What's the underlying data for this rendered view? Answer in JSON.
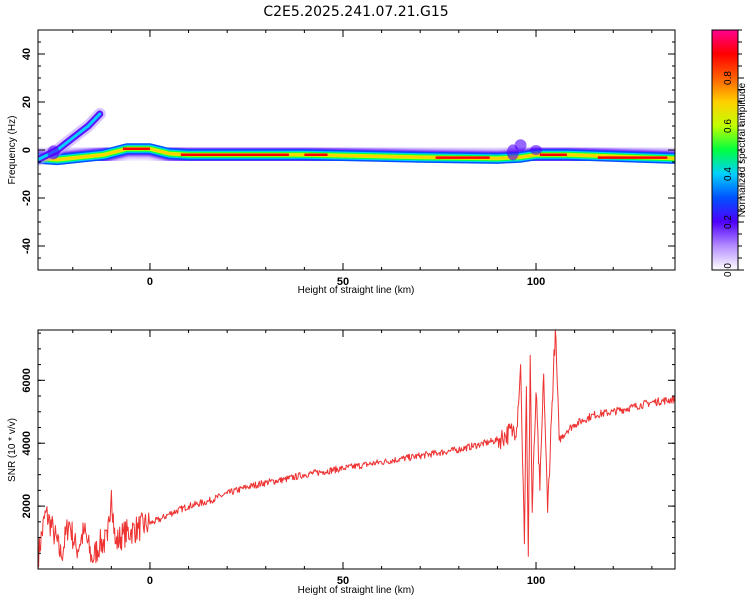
{
  "title": "C2E5.2025.241.07.21.G15",
  "chart_data": [
    {
      "type": "heatmap",
      "xlabel": "Height of straight line (km)",
      "ylabel": "Frequency (Hz)",
      "xlim": [
        -29,
        136
      ],
      "ylim": [
        -50,
        50
      ],
      "xticks": [
        "0",
        "50",
        "100"
      ],
      "yticks": [
        "40",
        "20",
        "0",
        "-20",
        "-40"
      ],
      "xtick_values": [
        0,
        50,
        100
      ],
      "ytick_values": [
        40,
        20,
        0,
        -20,
        -40
      ],
      "ridge": [
        {
          "x": -29,
          "f": -3.5
        },
        {
          "x": -24,
          "f": -4.0
        },
        {
          "x": -18,
          "f": -3.0
        },
        {
          "x": -12,
          "f": -2.0
        },
        {
          "x": -6,
          "f": 0.5
        },
        {
          "x": 0,
          "f": 0.5
        },
        {
          "x": 5,
          "f": -1.5
        },
        {
          "x": 10,
          "f": -2.0
        },
        {
          "x": 40,
          "f": -2.0
        },
        {
          "x": 70,
          "f": -3.0
        },
        {
          "x": 90,
          "f": -3.5
        },
        {
          "x": 96,
          "f": -3.0
        },
        {
          "x": 100,
          "f": -2.0
        },
        {
          "x": 108,
          "f": -2.0
        },
        {
          "x": 136,
          "f": -3.5
        }
      ],
      "branch": [
        {
          "x": -29,
          "f": -4
        },
        {
          "x": -24,
          "f": 0
        },
        {
          "x": -20,
          "f": 5
        },
        {
          "x": -16,
          "f": 10
        },
        {
          "x": -13,
          "f": 15
        }
      ],
      "colorbar": {
        "label": "Normalized spectral amplitude",
        "range": [
          0,
          1
        ],
        "ticks": [
          "0.0",
          "0.2",
          "0.4",
          "0.6",
          "0.8"
        ],
        "tick_values": [
          0,
          0.2,
          0.4,
          0.6,
          0.8
        ],
        "colors": [
          "#ffffff",
          "#b48cff",
          "#5000ff",
          "#0050ff",
          "#00d0ff",
          "#00ff40",
          "#c0ff00",
          "#ffd000",
          "#ff6000",
          "#ff0000",
          "#ff0090"
        ]
      }
    },
    {
      "type": "line",
      "xlabel": "Height of straight line (km)",
      "ylabel": "SNR (10 * v/v)",
      "xlim": [
        -29,
        136
      ],
      "ylim": [
        0,
        7600
      ],
      "xticks": [
        "0",
        "50",
        "100"
      ],
      "yticks": [
        "2000",
        "4000",
        "6000"
      ],
      "xtick_values": [
        0,
        50,
        100
      ],
      "ytick_values": [
        2000,
        4000,
        6000
      ],
      "color": "#ee3333",
      "series": [
        {
          "x": [
            -29,
            -27,
            -25,
            -23,
            -21,
            -19,
            -17,
            -15,
            -13,
            -11,
            -10,
            -9,
            -7,
            -5,
            -3,
            -1,
            1,
            3,
            5,
            10,
            15,
            20,
            25,
            30,
            35,
            40,
            45,
            50,
            55,
            60,
            65,
            70,
            75,
            80,
            85,
            90,
            92,
            94,
            95,
            96,
            97,
            97.5,
            98,
            98.5,
            99,
            100,
            101,
            102,
            103,
            104,
            105,
            106,
            108,
            110,
            115,
            120,
            125,
            130,
            136
          ],
          "y": [
            400,
            1800,
            1200,
            400,
            1500,
            600,
            1200,
            300,
            800,
            900,
            2500,
            800,
            1100,
            1200,
            1300,
            1400,
            1500,
            1600,
            1750,
            2000,
            2150,
            2400,
            2600,
            2750,
            2850,
            3000,
            3100,
            3200,
            3300,
            3400,
            3500,
            3600,
            3700,
            3800,
            3950,
            4100,
            4250,
            4400,
            4500,
            6500,
            800,
            5800,
            400,
            6800,
            1800,
            5600,
            2500,
            6200,
            1800,
            4800,
            7600,
            4100,
            4400,
            4600,
            4900,
            5000,
            5150,
            5300,
            5400
          ]
        }
      ]
    }
  ]
}
